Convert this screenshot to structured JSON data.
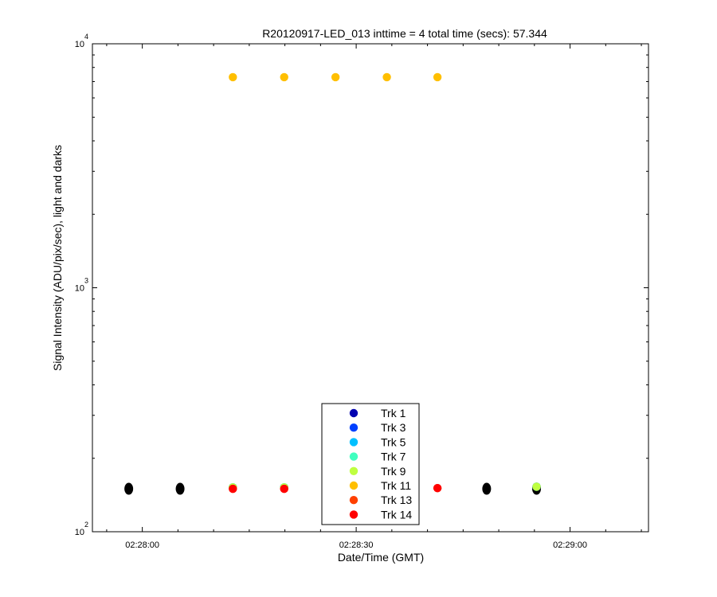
{
  "chart_data": {
    "type": "scatter",
    "title": "R20120917-LED_013 inttime = 4 total time (secs): 57.344",
    "xlabel": "Date/Time (GMT)",
    "ylabel": "Signal Intensity (ADU/pix/sec), light and darks",
    "x_ticks": [
      "02:28:00",
      "02:28:30",
      "02:29:00"
    ],
    "x_tick_seconds": [
      0,
      30,
      60
    ],
    "xlim_seconds": [
      -7,
      71
    ],
    "y_scale": "log",
    "ylim": [
      100,
      10000
    ],
    "y_tick_labels": [
      {
        "base": "10",
        "exp": "2",
        "value": 100
      },
      {
        "base": "10",
        "exp": "3",
        "value": 1000
      },
      {
        "base": "10",
        "exp": "4",
        "value": 10000
      }
    ],
    "legend_placement": "bottom-center",
    "dark_color": "#000000",
    "series": [
      {
        "name": "Trk 1",
        "color": "#0000b0",
        "x": [
          12.7,
          19.9,
          55.3
        ],
        "y": [
          152,
          152,
          153
        ]
      },
      {
        "name": "Trk 3",
        "color": "#0040ff",
        "x": [
          12.7,
          19.9,
          55.3
        ],
        "y": [
          152,
          152,
          153
        ]
      },
      {
        "name": "Trk 5",
        "color": "#00c0ff",
        "x": [
          12.7,
          19.9,
          55.3
        ],
        "y": [
          152,
          152,
          153
        ]
      },
      {
        "name": "Trk 7",
        "color": "#40ffbf",
        "x": [
          12.7,
          19.9,
          55.3
        ],
        "y": [
          152,
          152,
          153
        ]
      },
      {
        "name": "Trk 9",
        "color": "#bfff40",
        "x": [
          12.7,
          19.9,
          55.3
        ],
        "y": [
          152,
          152,
          153
        ]
      },
      {
        "name": "Trk 11",
        "color": "#ffbf00",
        "x": [
          12.7,
          19.9,
          27.1,
          34.3,
          41.4
        ],
        "y": [
          7300,
          7300,
          7300,
          7300,
          7300
        ]
      },
      {
        "name": "Trk 13",
        "color": "#ff4000",
        "x": [
          12.7,
          19.9,
          41.4
        ],
        "y": [
          150,
          150,
          151
        ]
      },
      {
        "name": "Trk 14",
        "color": "#ff0000",
        "x": [
          12.7,
          19.9,
          41.4
        ],
        "y": [
          150,
          150,
          151
        ]
      }
    ],
    "darks": {
      "x": [
        -1.9,
        5.3,
        48.3,
        55.3
      ],
      "y": [
        150,
        150,
        150,
        150
      ]
    }
  }
}
